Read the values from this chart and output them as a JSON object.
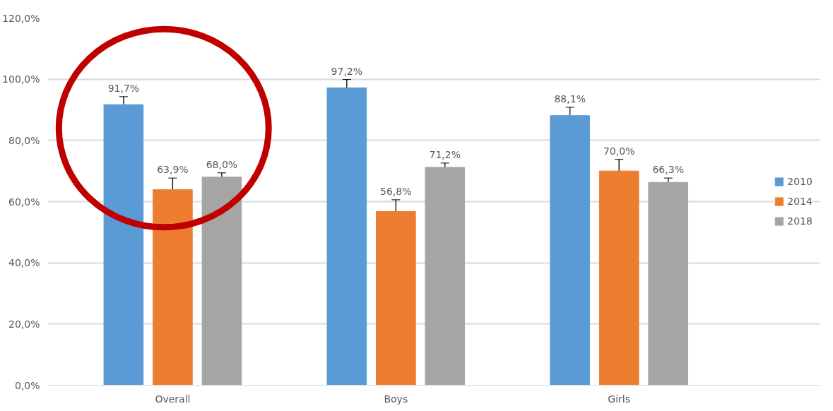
{
  "chart_data": {
    "type": "bar",
    "categories": [
      "Overall",
      "Boys",
      "Girls"
    ],
    "series": [
      {
        "name": "2010",
        "color": "#5b9bd5",
        "values": [
          91.7,
          97.2,
          88.1
        ],
        "errors": [
          2.6,
          2.7,
          2.7
        ],
        "value_labels": [
          "91,7%",
          "97,2%",
          "88,1%"
        ]
      },
      {
        "name": "2014",
        "color": "#ed7d31",
        "values": [
          63.9,
          56.8,
          70.0
        ],
        "errors": [
          3.8,
          3.8,
          3.8
        ],
        "value_labels": [
          "63,9%",
          "56,8%",
          "70,0%"
        ]
      },
      {
        "name": "2018",
        "color": "#a5a5a5",
        "values": [
          68.0,
          71.2,
          66.3
        ],
        "errors": [
          1.4,
          1.4,
          1.4
        ],
        "value_labels": [
          "68,0%",
          "71,2%",
          "66,3%"
        ]
      }
    ],
    "ylim": [
      0,
      120
    ],
    "yticks": [
      {
        "value": 0,
        "label": "0,0%"
      },
      {
        "value": 20,
        "label": "20,0%"
      },
      {
        "value": 40,
        "label": "40,0%"
      },
      {
        "value": 60,
        "label": "60,0%"
      },
      {
        "value": 80,
        "label": "80,0%"
      },
      {
        "value": 100,
        "label": "100,0%"
      },
      {
        "value": 120,
        "label": "120,0%"
      }
    ],
    "grid": "y",
    "legend": "right"
  }
}
